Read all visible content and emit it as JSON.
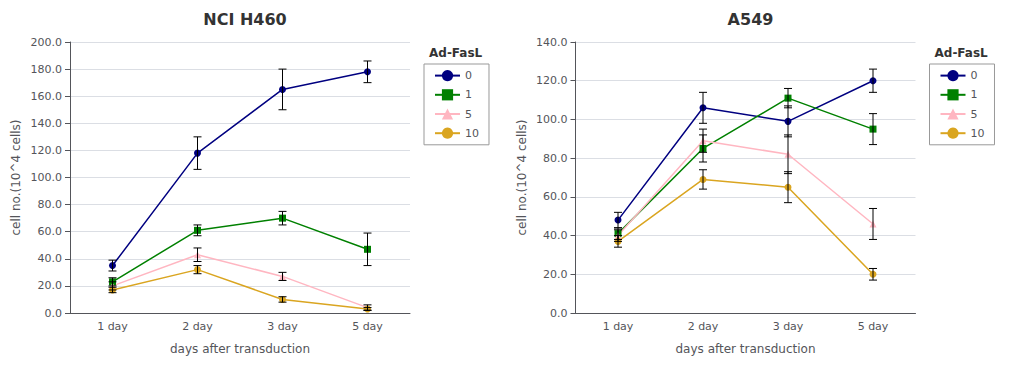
{
  "chart_data": [
    {
      "type": "line",
      "title": "NCI H460",
      "categories": [
        "1 day",
        "2 day",
        "3 day",
        "5 day"
      ],
      "x_label": "days after transduction",
      "y_label": "cell no.(10^4 cells)",
      "ylim": [
        0,
        200
      ],
      "yticks": [
        {
          "value": 0,
          "label": "0.0"
        },
        {
          "value": 20,
          "label": "20.0"
        },
        {
          "value": 40,
          "label": "40.0"
        },
        {
          "value": 60,
          "label": "60.0"
        },
        {
          "value": 80,
          "label": "80.0"
        },
        {
          "value": 100,
          "label": "100.0"
        },
        {
          "value": 120,
          "label": "120.0"
        },
        {
          "value": 140,
          "label": "140.0"
        },
        {
          "value": 160,
          "label": "160.0"
        },
        {
          "value": 180,
          "label": "180.0"
        },
        {
          "value": 200,
          "label": "200.0"
        }
      ],
      "grid": true,
      "legend": "right",
      "legend_title": "Ad-FasL",
      "series": [
        {
          "name": "0",
          "color": "#000080",
          "marker": "circle",
          "values": [
            35,
            118,
            165,
            178
          ],
          "errors": [
            4,
            12,
            15,
            8
          ]
        },
        {
          "name": "1",
          "color": "#008000",
          "marker": "square",
          "values": [
            23,
            61,
            70,
            47
          ],
          "errors": [
            3,
            4,
            5,
            12
          ]
        },
        {
          "name": "5",
          "color": "#FFB6C1",
          "marker": "triangle",
          "values": [
            20,
            43,
            27,
            4
          ],
          "errors": [
            3,
            5,
            3,
            2
          ]
        },
        {
          "name": "10",
          "color": "#DAA520",
          "marker": "circle",
          "values": [
            17,
            32,
            10,
            3
          ],
          "errors": [
            2,
            3,
            2,
            1
          ]
        }
      ]
    },
    {
      "type": "line",
      "title": "A549",
      "categories": [
        "1 day",
        "2 day",
        "3 day",
        "5 day"
      ],
      "x_label": "days after transduction",
      "y_label": "cell no.(10^4 cells)",
      "ylim": [
        0,
        140
      ],
      "yticks": [
        {
          "value": 0,
          "label": "0.0"
        },
        {
          "value": 20,
          "label": "20.0"
        },
        {
          "value": 40,
          "label": "40.0"
        },
        {
          "value": 60,
          "label": "60.0"
        },
        {
          "value": 80,
          "label": "80.0"
        },
        {
          "value": 100,
          "label": "100.0"
        },
        {
          "value": 120,
          "label": "120.0"
        },
        {
          "value": 140,
          "label": "140.0"
        }
      ],
      "grid": true,
      "legend": "right",
      "legend_title": "Ad-FasL",
      "series": [
        {
          "name": "0",
          "color": "#000080",
          "marker": "circle",
          "values": [
            48,
            106,
            99,
            120
          ],
          "errors": [
            4,
            8,
            8,
            6
          ]
        },
        {
          "name": "1",
          "color": "#008000",
          "marker": "square",
          "values": [
            41,
            85,
            111,
            95
          ],
          "errors": [
            3,
            7,
            5,
            8
          ]
        },
        {
          "name": "5",
          "color": "#FFB6C1",
          "marker": "triangle",
          "values": [
            40,
            89,
            82,
            46
          ],
          "errors": [
            3,
            6,
            10,
            8
          ]
        },
        {
          "name": "10",
          "color": "#DAA520",
          "marker": "circle",
          "values": [
            37,
            69,
            65,
            20
          ],
          "errors": [
            3,
            5,
            8,
            3
          ]
        }
      ]
    }
  ]
}
